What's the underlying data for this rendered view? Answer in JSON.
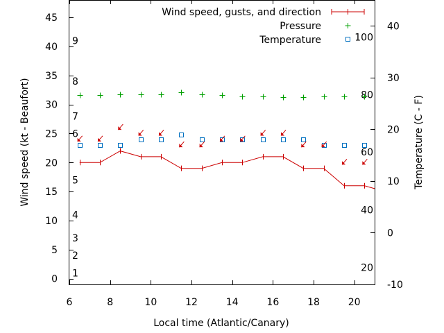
{
  "chart_data": {
    "type": "line",
    "title": "",
    "xlabel": "Local time (Atlantic/Canary)",
    "ylabel_left": "Wind speed (kt - Beaufort)",
    "ylabel_right": "Temperature (C - F)",
    "xlim": [
      6,
      21
    ],
    "ylim_left": [
      -1,
      48
    ],
    "ylim_right": [
      -10,
      45
    ],
    "x_ticks": [
      6,
      8,
      10,
      12,
      14,
      16,
      18,
      20
    ],
    "y_ticks_left": [
      0,
      5,
      10,
      15,
      20,
      25,
      30,
      35,
      40,
      45
    ],
    "y_ticks_right": [
      -10,
      0,
      10,
      20,
      30,
      40
    ],
    "grid": false,
    "legend_position": "top-right",
    "beaufort_labels": [
      {
        "label": "1",
        "kt": 1
      },
      {
        "label": "2",
        "kt": 4
      },
      {
        "label": "3",
        "kt": 7
      },
      {
        "label": "4",
        "kt": 11
      },
      {
        "label": "5",
        "kt": 17
      },
      {
        "label": "6",
        "kt": 25
      },
      {
        "label": "7",
        "kt": 28
      },
      {
        "label": "8",
        "kt": 34
      },
      {
        "label": "9",
        "kt": 41
      }
    ],
    "fahrenheit_labels": [
      {
        "label": "20",
        "celsius": -6.7
      },
      {
        "label": "40",
        "celsius": 4.4
      },
      {
        "label": "60",
        "celsius": 15.6
      },
      {
        "label": "80",
        "celsius": 26.7
      },
      {
        "label": "100",
        "celsius": 37.8
      }
    ],
    "series": [
      {
        "name": "Wind speed, gusts, and direction",
        "axis": "left",
        "style": "line-with-markers",
        "color": "#cc0000",
        "x": [
          6.5,
          7.5,
          8.5,
          9.5,
          10.5,
          11.5,
          12.5,
          13.5,
          14.5,
          15.5,
          16.5,
          17.5,
          18.5,
          19.5,
          20.5,
          21.0
        ],
        "values": [
          20,
          20,
          22,
          21,
          21,
          19,
          19,
          20,
          20,
          21,
          21,
          19,
          19,
          16,
          16,
          15.5
        ]
      },
      {
        "name": "Pressure",
        "axis": "right",
        "style": "plus-markers",
        "color": "#00a000",
        "x": [
          6.5,
          7.5,
          8.5,
          9.5,
          10.5,
          11.5,
          12.5,
          13.5,
          14.5,
          15.5,
          16.5,
          17.5,
          18.5,
          19.5,
          20.5
        ],
        "values": [
          26.6,
          26.6,
          26.8,
          26.8,
          26.8,
          27.1,
          26.8,
          26.6,
          26.4,
          26.4,
          26.2,
          26.2,
          26.4,
          26.4,
          26.4
        ]
      },
      {
        "name": "Temperature",
        "axis": "right",
        "style": "square-markers",
        "color": "#0070c0",
        "x": [
          6.5,
          7.5,
          8.5,
          9.5,
          10.5,
          11.5,
          12.5,
          13.5,
          14.5,
          15.5,
          16.5,
          17.5,
          18.5,
          19.5,
          20.5
        ],
        "values": [
          17,
          17,
          17,
          18,
          18,
          19,
          18,
          18,
          18,
          18,
          18,
          18,
          17,
          17,
          17
        ]
      }
    ],
    "wind_arrows": {
      "color": "#cc0000",
      "x": [
        6.5,
        7.5,
        8.5,
        9.5,
        10.5,
        11.5,
        12.5,
        13.5,
        14.5,
        15.5,
        16.5,
        17.5,
        18.5,
        19.5,
        20.5
      ],
      "kt": [
        24,
        24,
        26,
        25,
        25,
        23,
        23,
        24,
        24,
        25,
        25,
        23,
        23,
        20,
        20
      ],
      "pointing": [
        "SW",
        "SW",
        "SW",
        "SW",
        "SW",
        "SW",
        "SW",
        "SW",
        "SW",
        "SW",
        "SW",
        "SW",
        "SW",
        "SW",
        "SW"
      ]
    }
  }
}
